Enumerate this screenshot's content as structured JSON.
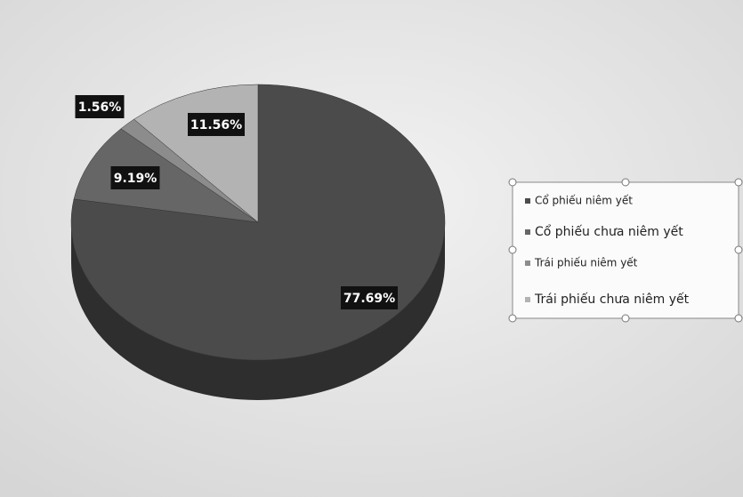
{
  "chart_data": {
    "type": "pie",
    "categories": [
      "Cổ phiếu niêm yết",
      "Cổ phiếu chưa niêm yết",
      "Trái phiếu niêm yết",
      "Trái phiếu chưa niêm yết"
    ],
    "values": [
      77.69,
      9.19,
      1.56,
      11.56
    ],
    "value_labels": [
      "77.69%",
      "9.19%",
      "1.56%",
      "11.56%"
    ],
    "colors": [
      "#4b4b4b",
      "#666666",
      "#8c8c8c",
      "#b3b3b3"
    ]
  }
}
